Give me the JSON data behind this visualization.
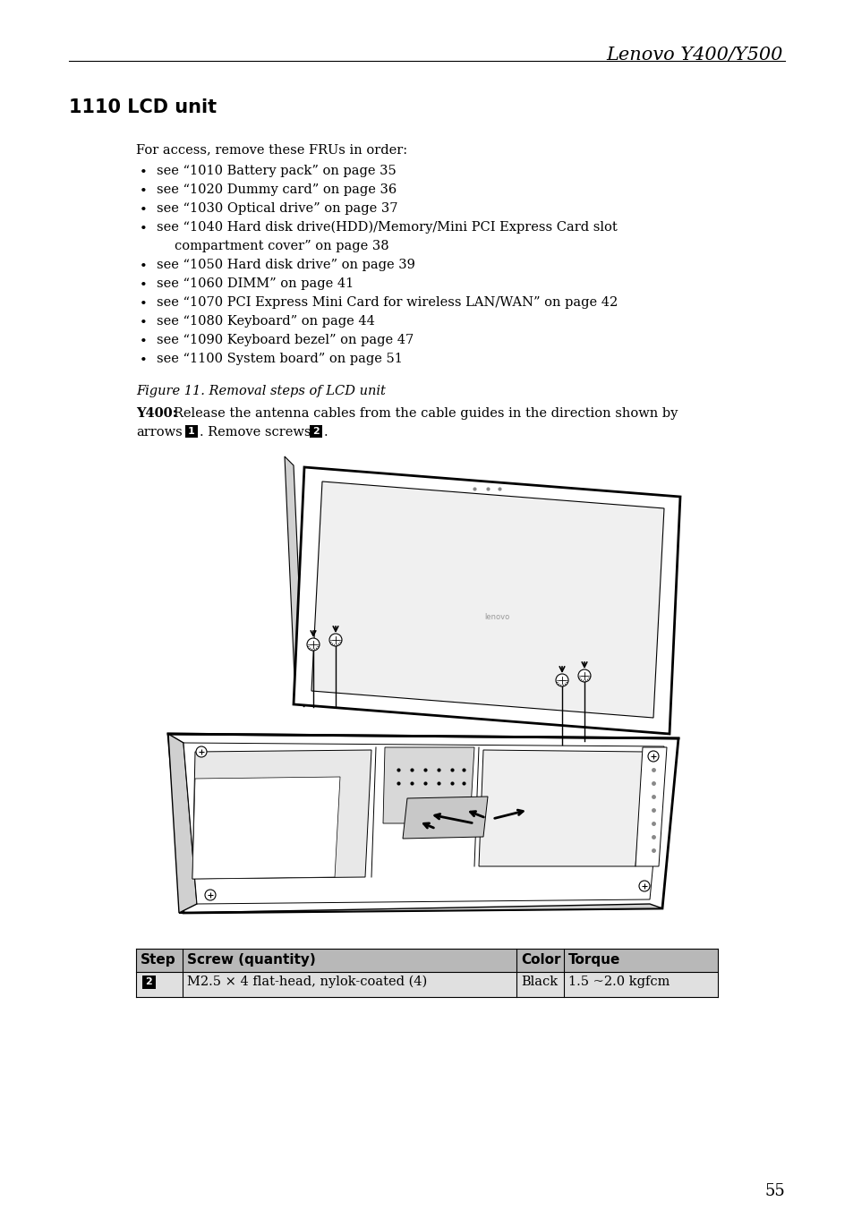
{
  "page_title": "Lenovo Y400/Y500",
  "section_title": "1110 LCD unit",
  "body_text_intro": "For access, remove these FRUs in order:",
  "bullet_lines": [
    "see “1010 Battery pack” on page 35",
    "see “1020 Dummy card” on page 36",
    "see “1030 Optical drive” on page 37",
    "see “1040 Hard disk drive(HDD)/Memory/Mini PCI Express Card slot",
    "compartment cover” on page 38",
    "see “1050 Hard disk drive” on page 39",
    "see “1060 DIMM” on page 41",
    "see “1070 PCI Express Mini Card for wireless LAN/WAN” on page 42",
    "see “1080 Keyboard” on page 44",
    "see “1090 Keyboard bezel” on page 47",
    "see “1100 System board” on page 51"
  ],
  "has_bullet": [
    true,
    true,
    true,
    true,
    false,
    true,
    true,
    true,
    true,
    true,
    true
  ],
  "figure_caption": "Figure 11. Removal steps of LCD unit",
  "table_headers": [
    "Step",
    "Screw (quantity)",
    "Color",
    "Torque"
  ],
  "table_row": [
    "2",
    "M2.5 × 4 flat-head, nylok-coated (4)",
    "Black",
    "1.5 ~2.0 kgfcm"
  ],
  "page_number": "55",
  "bg_color": "#ffffff",
  "text_color": "#000000"
}
